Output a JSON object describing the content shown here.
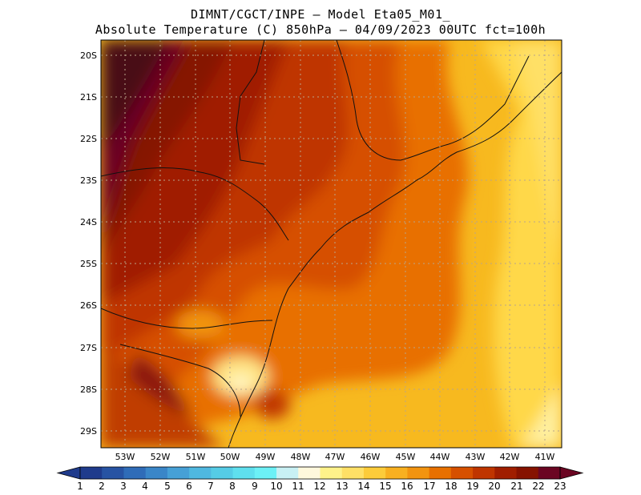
{
  "title": {
    "line1": "DIMNT/CGCT/INPE –  Model Eta05_M01_",
    "line2": "Absolute Temperature (C) 850hPa –  04/09/2023 00UTC fct=100h"
  },
  "map": {
    "region": "Southern/Southeastern Brazil",
    "variable": "Absolute Temperature (C)",
    "level": "850hPa",
    "lat_range": [
      -29.4,
      -19.5
    ],
    "lon_range": [
      -53.6,
      -40.6
    ],
    "lat_ticks": [
      "20S",
      "21S",
      "22S",
      "23S",
      "24S",
      "25S",
      "26S",
      "27S",
      "28S",
      "29S"
    ],
    "lon_ticks": [
      "53W",
      "52W",
      "51W",
      "50W",
      "49W",
      "48W",
      "47W",
      "46W",
      "45W",
      "44W",
      "43W",
      "42W",
      "41W"
    ],
    "gridlines": "dotted"
  },
  "colorbar": {
    "labels": [
      "1",
      "2",
      "3",
      "4",
      "5",
      "6",
      "7",
      "8",
      "9",
      "10",
      "11",
      "12",
      "13",
      "14",
      "15",
      "16",
      "17",
      "18",
      "19",
      "20",
      "21",
      "22",
      "23"
    ],
    "colors": [
      "#1f3b8c",
      "#2753a3",
      "#2f6cb8",
      "#3a86c8",
      "#46a0d6",
      "#4fb8e0",
      "#55cce6",
      "#5fdfee",
      "#6cf0f6",
      "#c8f0f4",
      "#fff8dc",
      "#fff28a",
      "#ffe066",
      "#fccc3a",
      "#f8b020",
      "#f29410",
      "#e87000",
      "#d65000",
      "#bf3500",
      "#a01e00",
      "#861200",
      "#6b0522"
    ]
  }
}
